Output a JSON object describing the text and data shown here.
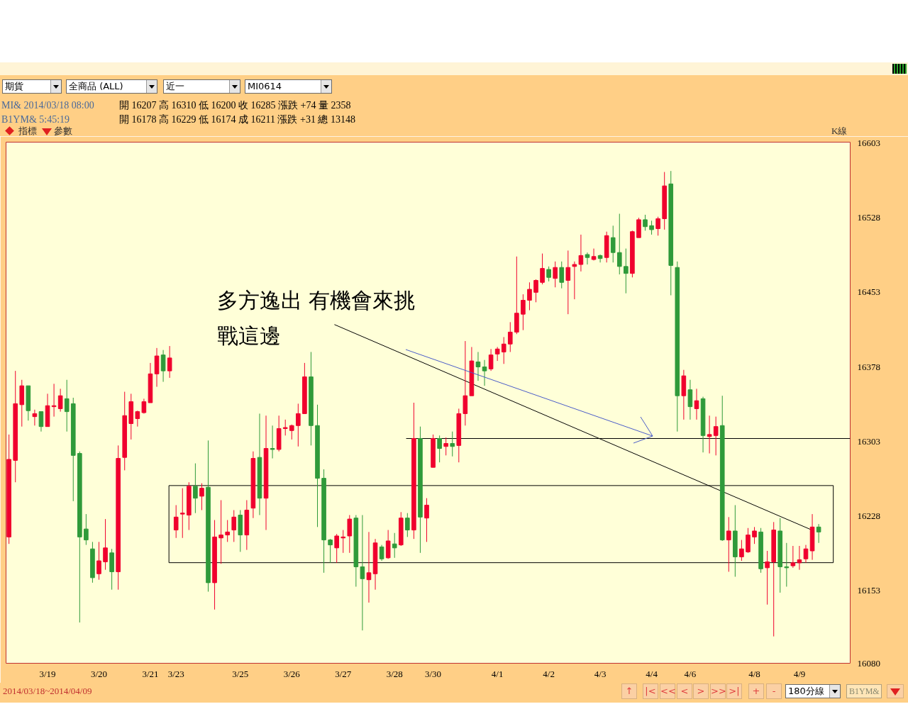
{
  "chart_data": {
    "type": "candlestick",
    "categories": [
      null,
      null,
      null,
      null,
      null,
      null,
      "3/19",
      null,
      null,
      null,
      null,
      null,
      null,
      null,
      "3/20",
      null,
      null,
      null,
      null,
      null,
      null,
      null,
      "3/21",
      null,
      null,
      null,
      "3/23",
      null,
      null,
      null,
      null,
      null,
      null,
      null,
      null,
      null,
      "3/25",
      null,
      null,
      null,
      null,
      null,
      null,
      null,
      "3/26",
      null,
      null,
      null,
      null,
      null,
      null,
      null,
      "3/27",
      null,
      null,
      null,
      null,
      null,
      null,
      null,
      "3/28",
      null,
      null,
      null,
      null,
      null,
      "3/30",
      null,
      null,
      null,
      null,
      null,
      null,
      null,
      null,
      null,
      "4/1",
      null,
      null,
      null,
      null,
      null,
      null,
      null,
      "4/2",
      null,
      null,
      null,
      null,
      null,
      null,
      null,
      "4/3",
      null,
      null,
      null,
      null,
      null,
      null,
      null,
      "4/4",
      null,
      null,
      null,
      null,
      null,
      "4/6",
      null,
      null,
      null,
      null,
      null,
      null,
      null,
      null,
      null,
      "4/8",
      null,
      null,
      null,
      null,
      null,
      null,
      "4/9",
      null,
      null,
      null
    ],
    "ylim": [
      16080,
      16604
    ],
    "yticks": [
      16080,
      16153,
      16228,
      16303,
      16378,
      16453,
      16528,
      16603
    ],
    "ohlc": [
      [
        16207,
        16310,
        16200,
        16285
      ],
      [
        16284,
        16374,
        16262,
        16341
      ],
      [
        16340,
        16365,
        16318,
        16359
      ],
      [
        16359,
        16359,
        16324,
        16334
      ],
      [
        16328,
        16335,
        16319,
        16331
      ],
      [
        16333,
        16333,
        16313,
        16318
      ],
      [
        16318,
        16351,
        16318,
        16339
      ],
      [
        16338,
        16361,
        16328,
        16339
      ],
      [
        16336,
        16356,
        16333,
        16349
      ],
      [
        16346,
        16365,
        16313,
        16333
      ],
      [
        16341,
        16347,
        16243,
        16289
      ],
      [
        16291,
        16293,
        16121,
        16207
      ],
      [
        16215,
        16230,
        16199,
        16204
      ],
      [
        16195,
        16202,
        16161,
        16166
      ],
      [
        16170,
        16202,
        16164,
        16183
      ],
      [
        16182,
        16225,
        16174,
        16196
      ],
      [
        16191,
        16195,
        16154,
        16172
      ],
      [
        16172,
        16299,
        16154,
        16286
      ],
      [
        16287,
        16353,
        16274,
        16329
      ],
      [
        16321,
        16351,
        16305,
        16343
      ],
      [
        16326,
        16334,
        16318,
        16333
      ],
      [
        16332,
        16346,
        16331,
        16343
      ],
      [
        16342,
        16382,
        16342,
        16371
      ],
      [
        16371,
        16397,
        16358,
        16389
      ],
      [
        16390,
        16395,
        16363,
        16374
      ],
      [
        16374,
        16399,
        16367,
        16387
      ],
      [
        16214,
        16239,
        16206,
        16227
      ],
      [
        16230,
        16256,
        16206,
        16231
      ],
      [
        16229,
        16262,
        16214,
        16258
      ],
      [
        16258,
        16281,
        16231,
        16246
      ],
      [
        16248,
        16261,
        16234,
        16256
      ],
      [
        16257,
        16304,
        16152,
        16161
      ],
      [
        16161,
        16224,
        16134,
        16207
      ],
      [
        16206,
        16244,
        16180,
        16209
      ],
      [
        16209,
        16224,
        16202,
        16212
      ],
      [
        16214,
        16234,
        16202,
        16227
      ],
      [
        16229,
        16234,
        16192,
        16209
      ],
      [
        16209,
        16244,
        16194,
        16234
      ],
      [
        16236,
        16293,
        16226,
        16286
      ],
      [
        16287,
        16331,
        16229,
        16246
      ],
      [
        16246,
        16329,
        16214,
        16296
      ],
      [
        16296,
        16319,
        16286,
        16295
      ],
      [
        16295,
        16329,
        16293,
        16316
      ],
      [
        16316,
        16325,
        16309,
        16317
      ],
      [
        16314,
        16320,
        16305,
        16319
      ],
      [
        16319,
        16341,
        16298,
        16331
      ],
      [
        16331,
        16382,
        16331,
        16368
      ],
      [
        16368,
        16393,
        16299,
        16319
      ],
      [
        16319,
        16340,
        16217,
        16266
      ],
      [
        16266,
        16275,
        16171,
        16204
      ],
      [
        16204,
        16205,
        16181,
        16199
      ],
      [
        16196,
        16210,
        16181,
        16208
      ],
      [
        16206,
        16214,
        16191,
        16207
      ],
      [
        16208,
        16229,
        16191,
        16225
      ],
      [
        16226,
        16229,
        16157,
        16177
      ],
      [
        16177,
        16229,
        16113,
        16165
      ],
      [
        16164,
        16212,
        16141,
        16171
      ],
      [
        16170,
        16205,
        16154,
        16201
      ],
      [
        16197,
        16199,
        16183,
        16185
      ],
      [
        16186,
        16214,
        16185,
        16203
      ],
      [
        16200,
        16211,
        16186,
        16196
      ],
      [
        16199,
        16232,
        16198,
        16226
      ],
      [
        16226,
        16231,
        16207,
        16214
      ],
      [
        16214,
        16342,
        16205,
        16306
      ],
      [
        16306,
        16318,
        16191,
        16227
      ],
      [
        16226,
        16246,
        16202,
        16239
      ],
      [
        16277,
        16310,
        16277,
        16306
      ],
      [
        16306,
        16309,
        16282,
        16296
      ],
      [
        16298,
        16307,
        16289,
        16301
      ],
      [
        16301,
        16313,
        16288,
        16298
      ],
      [
        16299,
        16336,
        16282,
        16331
      ],
      [
        16331,
        16404,
        16319,
        16349
      ],
      [
        16349,
        16398,
        16349,
        16384
      ],
      [
        16383,
        16393,
        16364,
        16378
      ],
      [
        16378,
        16385,
        16359,
        16374
      ],
      [
        16376,
        16396,
        16374,
        16390
      ],
      [
        16391,
        16398,
        16384,
        16396
      ],
      [
        16393,
        16408,
        16381,
        16401
      ],
      [
        16401,
        16423,
        16393,
        16413
      ],
      [
        16413,
        16489,
        16411,
        16432
      ],
      [
        16431,
        16451,
        16415,
        16445
      ],
      [
        16445,
        16463,
        16435,
        16456
      ],
      [
        16453,
        16466,
        16443,
        16465
      ],
      [
        16463,
        16492,
        16461,
        16477
      ],
      [
        16476,
        16479,
        16464,
        16468
      ],
      [
        16467,
        16484,
        16458,
        16478
      ],
      [
        16478,
        16484,
        16457,
        16463
      ],
      [
        16465,
        16495,
        16431,
        16478
      ],
      [
        16479,
        16484,
        16446,
        16481
      ],
      [
        16481,
        16511,
        16474,
        16490
      ],
      [
        16491,
        16493,
        16481,
        16488
      ],
      [
        16486,
        16497,
        16485,
        16489
      ],
      [
        16490,
        16491,
        16483,
        16487
      ],
      [
        16488,
        16514,
        16483,
        16510
      ],
      [
        16508,
        16520,
        16483,
        16493
      ],
      [
        16493,
        16532,
        16471,
        16479
      ],
      [
        16479,
        16497,
        16452,
        16472
      ],
      [
        16472,
        16515,
        16468,
        16514
      ],
      [
        16508,
        16528,
        16508,
        16526
      ],
      [
        16526,
        16531,
        16515,
        16519
      ],
      [
        16520,
        16525,
        16511,
        16516
      ],
      [
        16517,
        16529,
        16510,
        16527
      ],
      [
        16527,
        16574,
        16516,
        16560
      ],
      [
        16562,
        16575,
        16450,
        16480
      ],
      [
        16478,
        16484,
        16313,
        16349
      ],
      [
        16349,
        16375,
        16325,
        16369
      ],
      [
        16355,
        16365,
        16325,
        16338
      ],
      [
        16336,
        16356,
        16325,
        16344
      ],
      [
        16346,
        16348,
        16292,
        16309
      ],
      [
        16308,
        16329,
        16291,
        16310
      ],
      [
        16309,
        16328,
        16289,
        16318
      ],
      [
        16319,
        16349,
        16203,
        16204
      ],
      [
        16204,
        16227,
        16172,
        16213
      ],
      [
        16213,
        16239,
        16167,
        16187
      ],
      [
        16187,
        16204,
        16183,
        16195
      ],
      [
        16192,
        16216,
        16191,
        16209
      ],
      [
        16207,
        16217,
        16200,
        16213
      ],
      [
        16212,
        16216,
        16171,
        16175
      ],
      [
        16176,
        16193,
        16139,
        16182
      ],
      [
        16182,
        16222,
        16107,
        16214
      ],
      [
        16213,
        16226,
        16151,
        16177
      ],
      [
        16177,
        16201,
        16157,
        16176
      ],
      [
        16178,
        16198,
        16176,
        16181
      ],
      [
        16181,
        16198,
        16174,
        16184
      ],
      [
        16185,
        16199,
        16181,
        16195
      ],
      [
        16193,
        16230,
        16184,
        16217
      ],
      [
        16217,
        16220,
        16201,
        16212
      ]
    ],
    "colors": [
      "#f0002e",
      "#f0002e",
      "#f0002e",
      "#2f9a3a",
      "#f0002e",
      "#2f9a3a",
      "#f0002e",
      "#f0002e",
      "#f0002e",
      "#2f9a3a",
      "#2f9a3a",
      "#2f9a3a",
      "#2f9a3a",
      "#2f9a3a",
      "#f0002e",
      "#f0002e",
      "#2f9a3a",
      "#f0002e",
      "#f0002e",
      "#f0002e",
      "#f0002e",
      "#f0002e",
      "#f0002e",
      "#f0002e",
      "#2f9a3a",
      "#f0002e",
      "#f0002e",
      "#f0002e",
      "#f0002e",
      "#2f9a3a",
      "#f0002e",
      "#2f9a3a",
      "#f0002e",
      "#f0002e",
      "#f0002e",
      "#f0002e",
      "#2f9a3a",
      "#f0002e",
      "#f0002e",
      "#2f9a3a",
      "#f0002e",
      "#2f9a3a",
      "#f0002e",
      "#f0002e",
      "#f0002e",
      "#f0002e",
      "#f0002e",
      "#2f9a3a",
      "#2f9a3a",
      "#2f9a3a",
      "#2f9a3a",
      "#f0002e",
      "#f0002e",
      "#f0002e",
      "#2f9a3a",
      "#2f9a3a",
      "#f0002e",
      "#f0002e",
      "#2f9a3a",
      "#f0002e",
      "#2f9a3a",
      "#f0002e",
      "#2f9a3a",
      "#f0002e",
      "#2f9a3a",
      "#f0002e",
      "#f0002e",
      "#2f9a3a",
      "#f0002e",
      "#2f9a3a",
      "#f0002e",
      "#f0002e",
      "#f0002e",
      "#2f9a3a",
      "#2f9a3a",
      "#f0002e",
      "#f0002e",
      "#f0002e",
      "#f0002e",
      "#f0002e",
      "#f0002e",
      "#f0002e",
      "#f0002e",
      "#f0002e",
      "#2f9a3a",
      "#f0002e",
      "#2f9a3a",
      "#f0002e",
      "#f0002e",
      "#f0002e",
      "#2f9a3a",
      "#f0002e",
      "#2f9a3a",
      "#f0002e",
      "#2f9a3a",
      "#2f9a3a",
      "#2f9a3a",
      "#f0002e",
      "#f0002e",
      "#2f9a3a",
      "#2f9a3a",
      "#f0002e",
      "#f0002e",
      "#2f9a3a",
      "#2f9a3a",
      "#f0002e",
      "#2f9a3a",
      "#f0002e",
      "#2f9a3a",
      "#f0002e",
      "#f0002e",
      "#2f9a3a",
      "#f0002e",
      "#2f9a3a",
      "#f0002e",
      "#f0002e",
      "#f0002e",
      "#2f9a3a",
      "#f0002e",
      "#f0002e",
      "#2f9a3a",
      "#2f9a3a",
      "#f0002e",
      "#f0002e",
      "#f0002e",
      "#f0002e",
      "#2f9a3a"
    ],
    "ref_lines": [
      {
        "axis": "y",
        "value": 16306,
        "color": "#000000"
      }
    ],
    "annotations": [
      "期貨",
      "全商品 (ALL)",
      "近一",
      "MI0614",
      "MI& 2014/03/18 08:00",
      "開 16207 高 16310 低 16200 收 16285 漲跌 +74 量 2358",
      "B1YM& 5:45:19",
      "開 16178 高 16229 低 16174 成 16211 漲跌 +31 總 13148",
      "指標",
      "參數",
      "K線",
      "2014/03/18~2014/04/09",
      "↑",
      "|<",
      "<<",
      "<",
      ">",
      ">>",
      ">|",
      "+",
      "-",
      "180分線",
      "B1YM&",
      "多方逸出 有機會來挑戰這邊"
    ]
  }
}
